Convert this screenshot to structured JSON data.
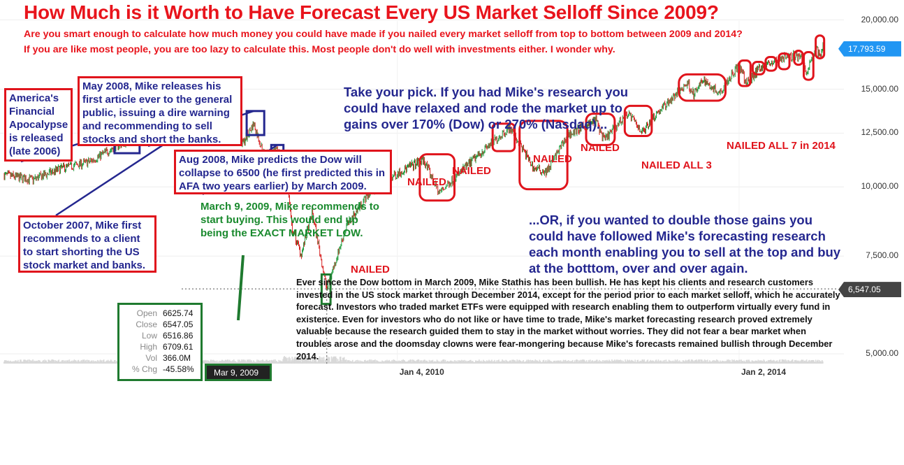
{
  "title": "How Much is it Worth to Have Forecast Every US Market Selloff Since 2009?",
  "subtitle_lines": [
    "Are you smart enough to calculate how much money you could have made if you nailed every market selloff from top to bottom between 2009 and 2014?",
    "If you are like most people, you are too lazy to calculate this. Most people don't do well with investments either. I wonder why."
  ],
  "annotations": {
    "afa": "America's Financial Apocalypse is released (late 2006)",
    "oct2007": "October 2007, Mike first recommends to a client to start shorting the US stock market and banks.",
    "may2008": "May 2008, Mike releases his first article ever to the general public, issuing a dire warning and recommending to sell stocks and short the banks.",
    "aug2008": "Aug 2008, Mike predicts the Dow will collapse to 6500 (he first predicted this in AFA two years earlier) by March 2009.",
    "mar2009": "March 9, 2009, Mike recommends to start buying. This would end up being the EXACT MARKET LOW.",
    "take_pick": "Take your pick. If you had Mike's research you could have relaxed and rode the market up to gains over 170% (Dow) or 270% (Nasdaq)...",
    "or_double": "...OR, if you wanted to double those gains you could have followed Mike's forecasting research each month enabling you to sell at the top and buy at the botttom, over and over again.",
    "paragraph": "Ever since the Dow bottom in March 2009, Mike Stathis has been bullish. He has kept his clients and research customers invested in the US stock market through December 2014, except for the period prior to each market selloff, which he accurately forecast. Investors who traded market ETFs were equipped with research enabling them to outperform virtually every fund in existence. Even for investors who do not like or have time to trade, Mike's market forecasting research proved extremely valuable because the research guided them to stay in the market without worries. They did not fear a bear market when troubles arose and the doomsday clowns were fear-mongering because Mike's forecasts remained bullish through December 2014."
  },
  "nailed_labels": {
    "n1": "NAILED",
    "n2": "NAILED",
    "n3": "NAILED",
    "n4": "NAILED",
    "n5": "NAILED",
    "all3": "NAILED ALL 3",
    "all7": "NAILED ALL 7 in 2014"
  },
  "ohlc_tooltip": {
    "rows": [
      {
        "label": "Open",
        "value": "6625.74"
      },
      {
        "label": "Close",
        "value": "6547.05"
      },
      {
        "label": "Low",
        "value": "6516.86"
      },
      {
        "label": "High",
        "value": "6709.61"
      },
      {
        "label": "Vol",
        "value": "366.0M"
      },
      {
        "label": "% Chg",
        "value": "-45.58%"
      }
    ],
    "date": "Mar 9, 2009"
  },
  "price_tags": {
    "last": "17,793.59",
    "cursor": "6,547.05"
  },
  "colors": {
    "up": "#1f9a3b",
    "down": "#d61f1f",
    "box_red": "#e0141c",
    "box_blue": "#24278f",
    "green": "#1f7a2f",
    "tag_blue": "#2196f3",
    "tag_dark": "#444444"
  },
  "chart_data": {
    "type": "line",
    "series_kind": "candlestick",
    "ylim": [
      4800,
      20500
    ],
    "yscale": "log",
    "yticks": [
      {
        "value": 20000,
        "label": "20,000.00"
      },
      {
        "value": 15000,
        "label": "15,000.00"
      },
      {
        "value": 12500,
        "label": "12,500.00"
      },
      {
        "value": 10000,
        "label": "10,000.00"
      },
      {
        "value": 7500,
        "label": "7,500.00"
      },
      {
        "value": 5000,
        "label": "5,000.00"
      }
    ],
    "xticks": [
      {
        "date": "2010-01-04",
        "label": "Jan 4, 2010"
      },
      {
        "date": "2014-01-02",
        "label": "Jan 2, 2014"
      }
    ],
    "x": [
      "2005-06-01",
      "2005-10-01",
      "2006-02-01",
      "2006-06-01",
      "2006-10-01",
      "2007-01-01",
      "2007-03-01",
      "2007-07-01",
      "2007-08-15",
      "2007-10-09",
      "2008-01-15",
      "2008-03-15",
      "2008-05-01",
      "2008-06-15",
      "2008-08-15",
      "2008-09-15",
      "2008-10-10",
      "2008-11-20",
      "2009-01-06",
      "2009-03-09",
      "2009-06-01",
      "2009-09-01",
      "2010-01-04",
      "2010-04-26",
      "2010-07-01",
      "2010-12-31",
      "2011-04-29",
      "2011-08-10",
      "2011-10-03",
      "2012-01-02",
      "2012-05-01",
      "2012-06-04",
      "2012-09-14",
      "2012-11-15",
      "2013-01-02",
      "2013-05-28",
      "2013-06-24",
      "2013-08-01",
      "2013-10-09",
      "2013-12-31",
      "2014-02-03",
      "2014-04-01",
      "2014-06-01",
      "2014-07-01",
      "2014-09-19",
      "2014-10-15",
      "2014-11-28",
      "2014-12-16",
      "2014-12-26"
    ],
    "values": [
      10500,
      10300,
      10800,
      11100,
      11900,
      12400,
      12100,
      13900,
      13000,
      14160,
      12500,
      11970,
      13000,
      11400,
      11600,
      11000,
      8450,
      7550,
      9000,
      6547,
      8500,
      9700,
      10580,
      11200,
      9750,
      11580,
      12800,
      10800,
      10650,
      12400,
      13200,
      12120,
      13600,
      12550,
      13400,
      15400,
      14650,
      15600,
      14800,
      16580,
      15370,
      16450,
      16800,
      17100,
      17280,
      16140,
      17830,
      17070,
      18050
    ]
  }
}
